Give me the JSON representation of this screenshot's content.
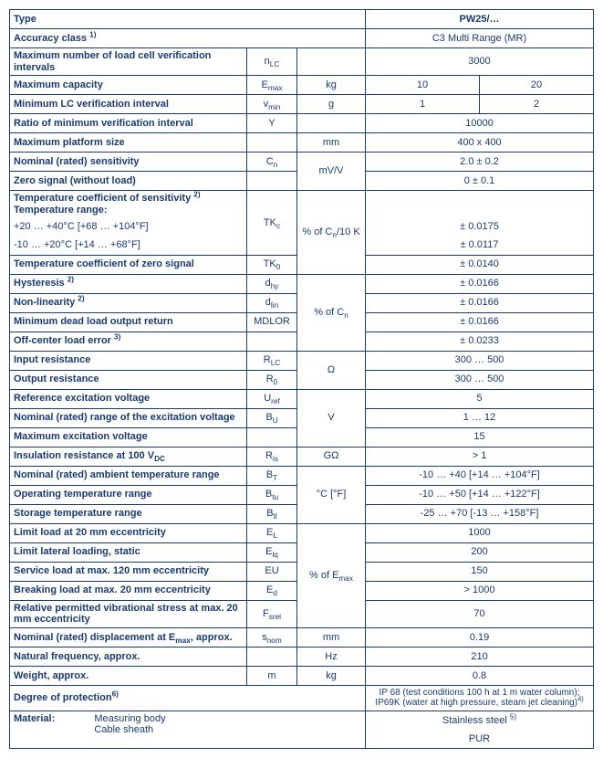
{
  "header": {
    "type": "Type",
    "product": "PW25/…"
  },
  "rows": {
    "accuracy": {
      "label": "Accuracy class <sup>1)</sup>",
      "val": "C3 Multi Range (MR)"
    },
    "nlc": {
      "label": "Maximum number of load cell verification intervals",
      "sym": "n<sub>LC</sub>",
      "val": "3000"
    },
    "emax": {
      "label": "Maximum capacity",
      "sym": "E<sub>max</sub>",
      "unit": "kg",
      "val1": "10",
      "val2": "20"
    },
    "vmin": {
      "label": "Minimum LC verification interval",
      "sym": "v<sub>min</sub>",
      "unit": "g",
      "val1": "1",
      "val2": "2"
    },
    "ratio": {
      "label": "Ratio of minimum verification interval",
      "sym": "Y",
      "val": "10000"
    },
    "platform": {
      "label": "Maximum platform size",
      "unit": "mm",
      "val": "400 x 400"
    },
    "cn": {
      "label": "Nominal (rated) sensitivity",
      "sym": "C<sub>n</sub>",
      "unit": "mV/V",
      "val": "2.0  ± 0.2"
    },
    "zero": {
      "label": "Zero signal (without load)",
      "val": "0  ± 0.1"
    },
    "tkc_hdr": {
      "label": "Temperature coefficient of sensitivity <sup>2)</sup><br><b>Temperature range:</b>"
    },
    "tkc_sym": "TK<sub>c</sub>",
    "tkc_unit": "% of C<sub>n</sub>/10 K",
    "tkc_r1": {
      "label": "+20 … +40°C [+68 … +104°F]",
      "val": "± 0.0175"
    },
    "tkc_r2": {
      "label": "-10 … +20°C [+14 … +68°F]",
      "val": "± 0.0117"
    },
    "tk0": {
      "label": "Temperature coefficient of zero signal",
      "sym": "TK<sub>0</sub>",
      "val": "± 0.0140"
    },
    "dhy": {
      "label": "Hysteresis <sup>2)</sup>",
      "sym": "d<sub>hy</sub>",
      "unit": "% of C<sub>n</sub>",
      "val": "± 0.0166"
    },
    "dlin": {
      "label": "Non-linearity <sup>2)</sup>",
      "sym": "d<sub>lin</sub>",
      "val": "± 0.0166"
    },
    "mdlor": {
      "label": "Minimum dead load output return",
      "sym": "MDLOR",
      "val": "± 0.0166"
    },
    "offc": {
      "label": "Off-center load error <sup>3)</sup>",
      "val": "± 0.0233"
    },
    "rlc": {
      "label": "Input resistance",
      "sym": "R<sub>LC</sub>",
      "unit": "Ω",
      "val": "300 … 500"
    },
    "r0": {
      "label": "Output resistance",
      "sym": "R<sub>0</sub>",
      "val": "300 … 500"
    },
    "uref": {
      "label": "Reference excitation voltage",
      "sym": "U<sub>ref</sub>",
      "unit": "V",
      "val": "5"
    },
    "bu": {
      "label": "Nominal (rated) range of the excitation voltage",
      "sym": "B<sub>U</sub>",
      "val": "1 … 12"
    },
    "maxex": {
      "label": "Maximum excitation voltage",
      "val": "15"
    },
    "ris": {
      "label": "Insulation resistance at 100 V<sub>DC</sub>",
      "sym": "R<sub>is</sub>",
      "unit": "GΩ",
      "val": "> 1"
    },
    "bt": {
      "label": "Nominal (rated) ambient temperature range",
      "sym": "B<sub>T</sub>",
      "unit": "°C [°F]",
      "val": "-10 … +40 [+14 … +104°F]"
    },
    "btu": {
      "label": "Operating temperature range",
      "sym": "B<sub>tu</sub>",
      "val": "-10 … +50 [+14 … +122°F]"
    },
    "btl": {
      "label": "Storage temperature range",
      "sym": "B<sub>tl</sub>",
      "val": "-25 … +70 [-13 … +158°F]"
    },
    "el": {
      "label": "Limit load at 20 mm eccentricity",
      "sym": "E<sub>L</sub>",
      "unit": "% of E<sub>max</sub>",
      "val": "1000"
    },
    "elq": {
      "label": "Limit lateral loading, static",
      "sym": "E<sub>lq</sub>",
      "val": "200"
    },
    "eu": {
      "label": "Service load at max. 120 mm eccentricity",
      "sym": "EU",
      "val": "150"
    },
    "ed": {
      "label": "Breaking load at max. 20 mm eccentricity",
      "sym": "E<sub>d</sub>",
      "val": "> 1000"
    },
    "fsrel": {
      "label": "Relative permitted vibrational stress at max. 20 mm eccentricity",
      "sym": "F<sub>srel</sub>",
      "val": "70"
    },
    "snom": {
      "label": "Nominal (rated) displacement at E<sub>max</sub>, approx.",
      "sym": "s<sub>nom</sub>",
      "unit": "mm",
      "val": "0.19"
    },
    "freq": {
      "label": "Natural frequency, approx.",
      "unit": "Hz",
      "val": "210"
    },
    "weight": {
      "label": "Weight, approx.",
      "sym": "m",
      "unit": "kg",
      "val": "0.8"
    },
    "prot": {
      "label": "Degree of protection<sup>6)</sup>",
      "val": "IP 68 (test conditions 100 h at 1 m water column);<br>IP69K (water at high pressure, steam jet cleaning)<sup>4)</sup>"
    },
    "mat": {
      "label": "Material:",
      "l1": "Measuring body",
      "l2": "Cable sheath",
      "v1": "Stainless steel <sup>5)</sup>",
      "v2": "PUR"
    }
  }
}
